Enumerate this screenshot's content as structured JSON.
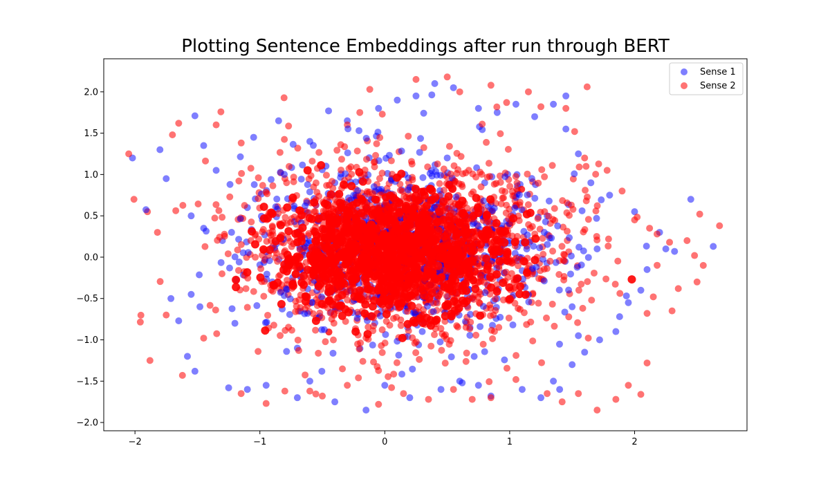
{
  "chart_data": {
    "type": "scatter",
    "title": "Plotting Sentence Embeddings after run through BERT",
    "xlabel": "",
    "ylabel": "",
    "xlim": [
      -2.25,
      2.9
    ],
    "ylim": [
      -2.1,
      2.4
    ],
    "xticks": [
      -2,
      -1,
      0,
      1,
      2
    ],
    "xtick_labels": [
      "−2",
      "−1",
      "0",
      "1",
      "2"
    ],
    "yticks": [
      -2.0,
      -1.5,
      -1.0,
      -0.5,
      0.0,
      0.5,
      1.0,
      1.5,
      2.0
    ],
    "ytick_labels": [
      "−2.0",
      "−1.5",
      "−1.0",
      "−0.5",
      "0.0",
      "0.5",
      "1.0",
      "1.5",
      "2.0"
    ],
    "grid": false,
    "legend_position": "top-right",
    "series": [
      {
        "name": "Sense 1",
        "color": "#0000ff",
        "alpha": 0.5,
        "points": [
          [
            -2.02,
            1.2
          ],
          [
            -1.8,
            1.3
          ],
          [
            -1.75,
            0.95
          ],
          [
            -1.52,
            1.71
          ],
          [
            -1.45,
            1.35
          ],
          [
            -1.35,
            1.05
          ],
          [
            -1.55,
            0.5
          ],
          [
            -1.45,
            0.35
          ],
          [
            -1.55,
            -0.45
          ],
          [
            -1.48,
            -0.6
          ],
          [
            -1.65,
            -0.77
          ],
          [
            -1.58,
            -1.2
          ],
          [
            -1.52,
            -1.38
          ],
          [
            -1.25,
            -1.58
          ],
          [
            -1.1,
            -1.6
          ],
          [
            -0.85,
            1.65
          ],
          [
            -0.6,
            1.4
          ],
          [
            -0.45,
            1.77
          ],
          [
            -0.3,
            1.65
          ],
          [
            -0.05,
            1.8
          ],
          [
            0.1,
            1.9
          ],
          [
            0.25,
            1.95
          ],
          [
            0.4,
            2.1
          ],
          [
            0.55,
            2.05
          ],
          [
            0.75,
            1.8
          ],
          [
            0.9,
            1.75
          ],
          [
            1.05,
            1.85
          ],
          [
            1.2,
            1.7
          ],
          [
            1.35,
            1.85
          ],
          [
            1.45,
            1.95
          ],
          [
            1.45,
            1.55
          ],
          [
            1.55,
            1.25
          ],
          [
            1.65,
            0.9
          ],
          [
            1.8,
            0.75
          ],
          [
            2.0,
            0.55
          ],
          [
            2.2,
            0.3
          ],
          [
            2.25,
            0.1
          ],
          [
            2.32,
            0.07
          ],
          [
            2.45,
            0.7
          ],
          [
            2.63,
            0.13
          ],
          [
            2.05,
            -0.4
          ],
          [
            1.95,
            -0.55
          ],
          [
            1.88,
            -0.72
          ],
          [
            1.85,
            -0.9
          ],
          [
            1.72,
            -1.0
          ],
          [
            1.6,
            -1.15
          ],
          [
            1.5,
            -1.3
          ],
          [
            1.35,
            -1.5
          ],
          [
            1.4,
            -1.6
          ],
          [
            1.25,
            -1.7
          ],
          [
            1.1,
            -1.6
          ],
          [
            0.75,
            -1.55
          ],
          [
            0.6,
            -1.5
          ],
          [
            0.45,
            -1.6
          ],
          [
            0.2,
            -1.7
          ],
          [
            0.0,
            -1.55
          ],
          [
            -0.15,
            -1.85
          ],
          [
            -0.4,
            -1.75
          ],
          [
            -0.7,
            -1.7
          ],
          [
            -0.95,
            -1.55
          ],
          [
            -0.2,
            0.1
          ],
          [
            0.1,
            -0.3
          ],
          [
            0.4,
            0.6
          ],
          [
            0.7,
            -0.5
          ],
          [
            -0.6,
            0.2
          ],
          [
            -0.9,
            -0.3
          ],
          [
            1.0,
            0.2
          ],
          [
            1.2,
            -0.2
          ],
          [
            -1.1,
            0.6
          ],
          [
            0.3,
            -0.9
          ],
          [
            -0.4,
            0.9
          ],
          [
            0.8,
            0.9
          ],
          [
            1.3,
            0.5
          ],
          [
            1.5,
            -0.6
          ],
          [
            -1.2,
            -0.8
          ],
          [
            0.5,
            1.2
          ],
          [
            -0.7,
            -1.1
          ],
          [
            1.7,
            0.1
          ],
          [
            -1.3,
            0.2
          ],
          [
            2.1,
            -0.15
          ],
          [
            0.62,
            -1.52
          ],
          [
            0.85,
            -1.68
          ],
          [
            -1.05,
            1.45
          ],
          [
            -0.6,
            -1.5
          ],
          [
            1.55,
            -0.95
          ]
        ]
      },
      {
        "name": "Sense 2",
        "color": "#ff0000",
        "alpha": 0.55,
        "points": [
          [
            -2.05,
            1.25
          ],
          [
            -1.9,
            0.55
          ],
          [
            -1.88,
            -1.25
          ],
          [
            -1.82,
            0.3
          ],
          [
            -1.75,
            -0.7
          ],
          [
            -1.65,
            1.62
          ],
          [
            -1.62,
            -1.43
          ],
          [
            -1.7,
            1.48
          ],
          [
            -1.45,
            -0.98
          ],
          [
            -1.35,
            1.6
          ],
          [
            -1.15,
            -1.65
          ],
          [
            -0.95,
            -1.77
          ],
          [
            -0.6,
            -1.62
          ],
          [
            -0.3,
            1.6
          ],
          [
            -0.2,
            1.75
          ],
          [
            -0.12,
            2.03
          ],
          [
            -0.02,
            1.73
          ],
          [
            0.25,
            2.15
          ],
          [
            0.5,
            2.18
          ],
          [
            0.6,
            2.0
          ],
          [
            0.85,
            2.08
          ],
          [
            1.15,
            2.0
          ],
          [
            1.25,
            1.82
          ],
          [
            1.45,
            1.8
          ],
          [
            1.52,
            1.52
          ],
          [
            1.6,
            1.2
          ],
          [
            1.62,
            2.06
          ],
          [
            1.78,
            1.05
          ],
          [
            1.9,
            0.8
          ],
          [
            2.0,
            0.45
          ],
          [
            2.12,
            0.35
          ],
          [
            2.18,
            0.28
          ],
          [
            2.28,
            0.18
          ],
          [
            2.42,
            0.2
          ],
          [
            2.48,
            0.02
          ],
          [
            2.55,
            -0.1
          ],
          [
            2.68,
            0.38
          ],
          [
            2.5,
            -0.3
          ],
          [
            2.35,
            -0.38
          ],
          [
            2.3,
            -0.65
          ],
          [
            2.15,
            -0.48
          ],
          [
            2.1,
            -0.68
          ],
          [
            2.1,
            -1.28
          ],
          [
            2.05,
            -1.66
          ],
          [
            1.95,
            -1.55
          ],
          [
            1.85,
            -1.72
          ],
          [
            1.7,
            -1.85
          ],
          [
            1.55,
            -1.65
          ],
          [
            1.42,
            -1.75
          ],
          [
            1.3,
            -1.65
          ],
          [
            1.05,
            -1.48
          ],
          [
            0.85,
            -1.7
          ],
          [
            0.7,
            -1.72
          ],
          [
            0.55,
            -1.6
          ],
          [
            0.35,
            -1.72
          ],
          [
            0.15,
            -1.65
          ],
          [
            -0.05,
            -1.78
          ],
          [
            -0.3,
            -1.55
          ],
          [
            -0.5,
            -1.68
          ],
          [
            -0.8,
            -1.62
          ]
        ]
      }
    ]
  }
}
